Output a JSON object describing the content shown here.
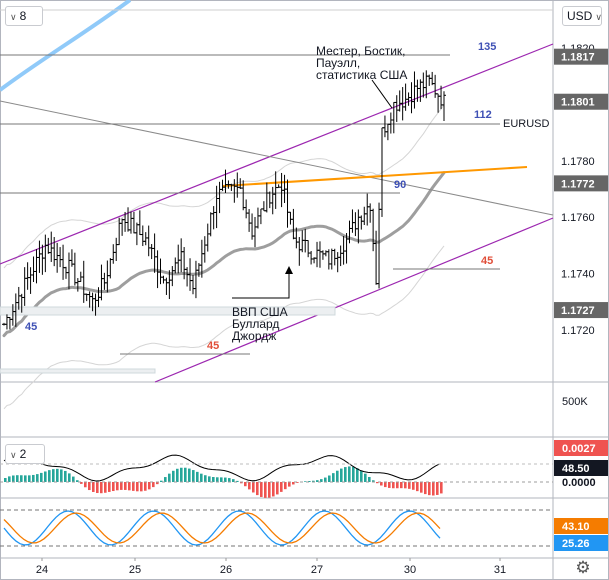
{
  "toolbar": {
    "interval_value": "8",
    "currency_value": "USD",
    "osc_value": "2",
    "settings_icon": "gear-icon"
  },
  "colors": {
    "price_axis_bg": "#666666",
    "up_bar": "#26a69a",
    "down_bar": "#ef5350",
    "channel": "#9c27b0",
    "orange_line": "#ff9800",
    "fib_blue": "#3f51b5",
    "fib_red": "#e04e39"
  },
  "chart_data": [
    {
      "type": "ohlc",
      "symbol_label": "EURUSD",
      "title": "",
      "x_ticks": [
        "24",
        "25",
        "26",
        "27",
        "30",
        "31"
      ],
      "y_ticks": [
        "1.1820",
        "1.1800",
        "1.1780",
        "1.1760",
        "1.1740",
        "1.1720"
      ],
      "ylim": [
        1.1705,
        1.1835
      ],
      "price_labels": [
        {
          "text": "1.1817",
          "value": 1.1817
        },
        {
          "text": "1.1801",
          "value": 1.1801
        },
        {
          "text": "1.1772",
          "value": 1.1772
        },
        {
          "text": "1.1727",
          "value": 1.1727
        }
      ],
      "level_tags": [
        {
          "text": "135",
          "color": "#3f51b5"
        },
        {
          "text": "112",
          "color": "#3f51b5"
        },
        {
          "text": "90",
          "color": "#3f51b5"
        },
        {
          "text": "45",
          "color": "#e04e39"
        },
        {
          "text": "45",
          "color": "#3f51b5"
        },
        {
          "text": "45",
          "color": "#e04e39"
        }
      ],
      "annotations": [
        {
          "lines": [
            "Местер, Бостик,",
            "Пауэлл,",
            "статистика США"
          ]
        },
        {
          "lines": [
            "ВВП США",
            "Буллард",
            "Джордж"
          ]
        }
      ]
    },
    {
      "type": "bar",
      "name": "volume",
      "y_ticks": [
        "500K"
      ],
      "labels": [
        {
          "text": "0.0027",
          "bg": "#ef5350"
        },
        {
          "text": "48.50",
          "bg": "#131722"
        },
        {
          "text": "0.0000",
          "bg": ""
        }
      ]
    },
    {
      "type": "line",
      "name": "stochastic",
      "labels": [
        {
          "text": "43.10",
          "bg": "#f57c00"
        },
        {
          "text": "25.26",
          "bg": "#2196f3"
        }
      ]
    }
  ]
}
